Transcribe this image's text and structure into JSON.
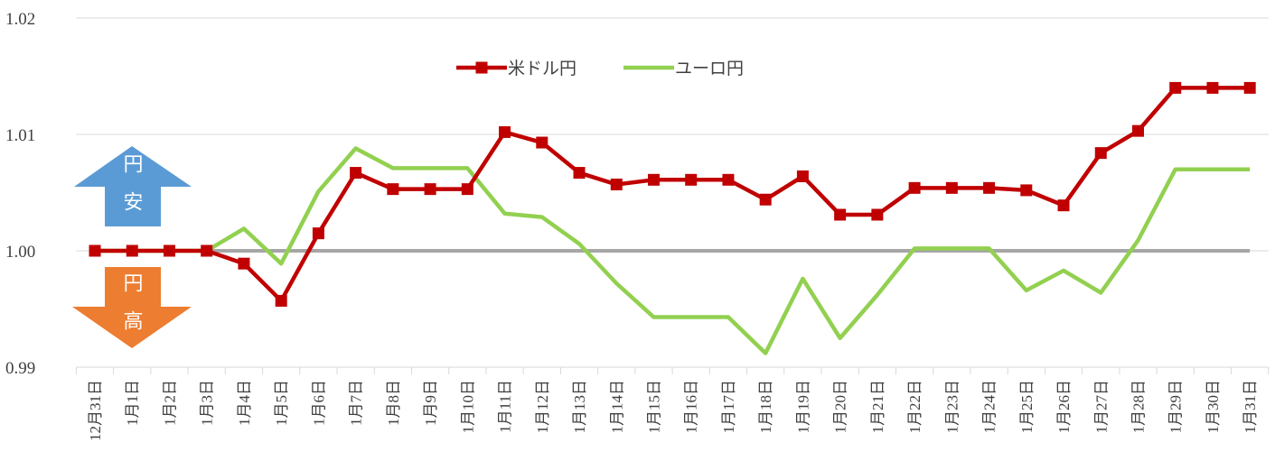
{
  "chart_data": {
    "type": "line",
    "categories": [
      "12月31日",
      "1月1日",
      "1月2日",
      "1月3日",
      "1月4日",
      "1月5日",
      "1月6日",
      "1月7日",
      "1月8日",
      "1月9日",
      "1月10日",
      "1月11日",
      "1月12日",
      "1月13日",
      "1月14日",
      "1月15日",
      "1月16日",
      "1月17日",
      "1月18日",
      "1月19日",
      "1月20日",
      "1月21日",
      "1月22日",
      "1月23日",
      "1月24日",
      "1月25日",
      "1月26日",
      "1月27日",
      "1月28日",
      "1月29日",
      "1月30日",
      "1月31日"
    ],
    "series": [
      {
        "name": "米ドル円",
        "color": "#c00000",
        "marker": "square",
        "values": [
          1.0,
          1.0,
          1.0,
          1.0,
          0.9989,
          0.9957,
          1.0015,
          1.0067,
          1.0053,
          1.0053,
          1.0053,
          1.0102,
          1.0093,
          1.0067,
          1.0057,
          1.0061,
          1.0061,
          1.0061,
          1.0044,
          1.0064,
          1.0031,
          1.0031,
          1.0054,
          1.0054,
          1.0054,
          1.0052,
          1.0039,
          1.0084,
          1.0103,
          1.014,
          1.014,
          1.014
        ]
      },
      {
        "name": "ユーロ円",
        "color": "#92d050",
        "values": [
          1.0,
          1.0,
          1.0,
          1.0,
          1.0019,
          0.9989,
          1.0051,
          1.0088,
          1.0071,
          1.0071,
          1.0071,
          1.0032,
          1.0029,
          1.0006,
          0.9972,
          0.9943,
          0.9943,
          0.9943,
          0.9912,
          0.9976,
          0.9925,
          0.9962,
          1.0002,
          1.0002,
          1.0002,
          0.9966,
          0.9983,
          0.9964,
          1.0009,
          1.007,
          1.007,
          1.007
        ]
      }
    ],
    "ylim": [
      0.99,
      1.02
    ],
    "yticks": [
      0.99,
      {
        "value": 1,
        "label": "1.00"
      },
      1.01,
      1.02
    ],
    "grid": true,
    "baseline": 1,
    "annotations": [
      {
        "text": "円安",
        "color": "#5b9bd5",
        "direction": "up"
      },
      {
        "text": "円高",
        "color": "#ed7d31",
        "direction": "down"
      }
    ]
  }
}
